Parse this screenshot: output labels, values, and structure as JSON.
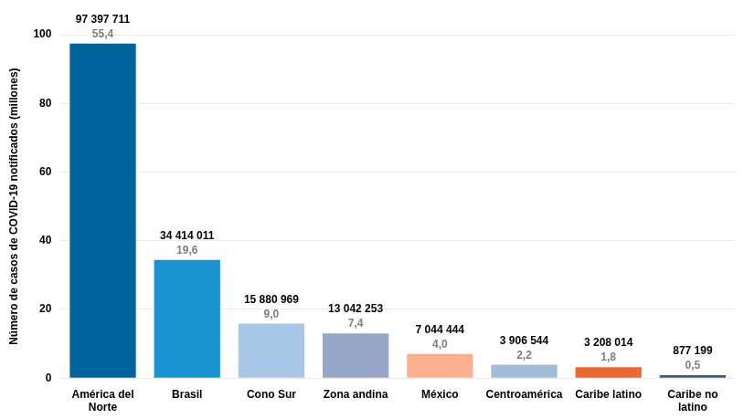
{
  "chart_data": {
    "type": "bar",
    "y_label": "Número de casos de COVID-19 notificados (millones)",
    "categories": [
      "América del Norte",
      "Brasil",
      "Cono Sur",
      "Zona andina",
      "México",
      "Centroamérica",
      "Caribe latino",
      "Caribe no latino"
    ],
    "values": [
      97.397711,
      34.414011,
      15.880969,
      13.042253,
      7.044444,
      3.906544,
      3.208014,
      0.877199
    ],
    "value_labels": [
      "97 397 711",
      "34 414 011",
      "15 880 969",
      "13 042 253",
      "7 044 444",
      "3 906 544",
      "3 208 014",
      "877 199"
    ],
    "percentages": [
      55.4,
      19.6,
      9.0,
      7.4,
      4.0,
      2.2,
      1.8,
      0.5
    ],
    "percentage_labels": [
      "55,4",
      "19,6",
      "9,0",
      "7,4",
      "4,0",
      "2,2",
      "1,8",
      "0,5"
    ],
    "colors": [
      "#00639c",
      "#1a94d0",
      "#a6c8e6",
      "#97a7c8",
      "#fbb08f",
      "#a0bed9",
      "#ec6731",
      "#2f5f8f"
    ],
    "ylim": [
      0,
      100
    ],
    "yticks": [
      0,
      20,
      40,
      60,
      80,
      100
    ],
    "grid": true,
    "data_labels": true
  }
}
